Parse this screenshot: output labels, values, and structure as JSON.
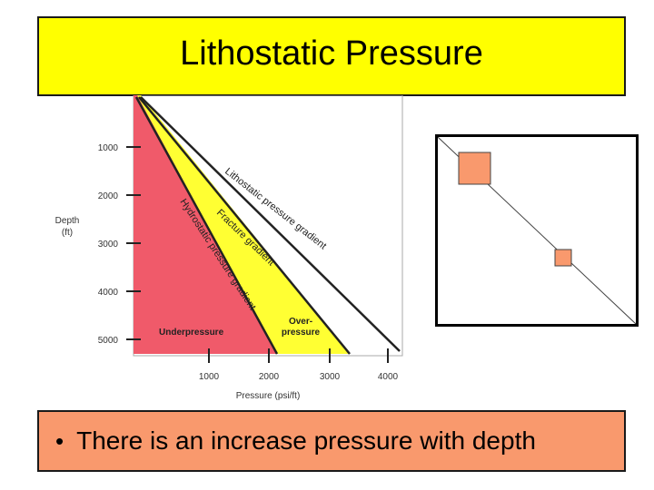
{
  "slide": {
    "title": "Lithostatic Pressure",
    "bullet": "There is an increase pressure with depth"
  },
  "diagram": {
    "y_axis_label_line1": "Depth",
    "y_axis_label_line2": "(ft)",
    "x_axis_label": "Pressure (psi/ft)",
    "y_ticks": [
      "1000",
      "2000",
      "3000",
      "4000",
      "5000"
    ],
    "x_ticks": [
      "1000",
      "2000",
      "3000",
      "4000"
    ],
    "curves": {
      "lithostatic": "Lithostatic pressure gradient",
      "fracture": "Fracture gradient",
      "hydrostatic": "Hydrostatic pressure gradient"
    },
    "regions": {
      "underpressure": "Underpressure",
      "overpressure_line1": "Over-",
      "overpressure_line2": "pressure"
    },
    "colors": {
      "underpressure_fill": "#f05a6a",
      "overpressure_fill": "#ffff33",
      "line": "#222222"
    }
  },
  "colors": {
    "title_bg": "#ffff00",
    "bullet_bg": "#f9996d",
    "inset_square": "#f9996d"
  }
}
